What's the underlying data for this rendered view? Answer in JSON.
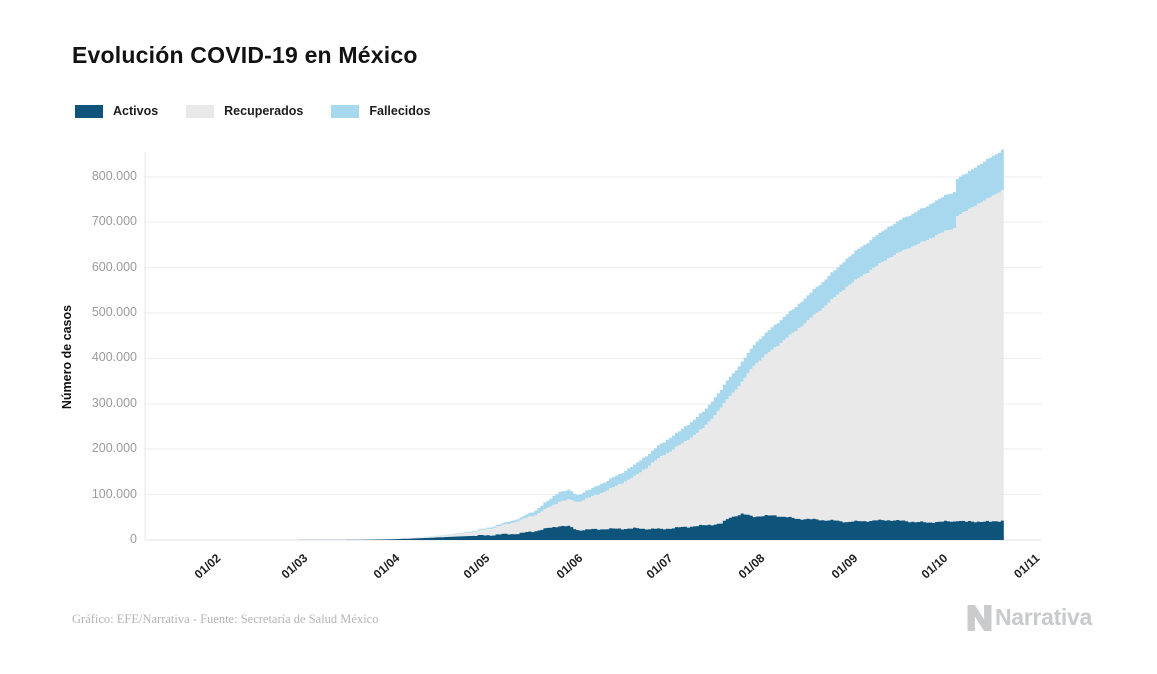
{
  "title": "Evolución COVID-19 en México",
  "legend": {
    "items": [
      {
        "label": "Activos",
        "color": "#0E547A"
      },
      {
        "label": "Recuperados",
        "color": "#E9E9E9"
      },
      {
        "label": "Fallecidos",
        "color": "#A8D8EE"
      }
    ]
  },
  "y_axis": {
    "title": "Número de casos",
    "tick_labels": [
      "800.000",
      "700.000",
      "600.000",
      "500.000",
      "400.000",
      "300.000",
      "200.000",
      "100.000",
      "0"
    ]
  },
  "x_axis": {
    "tick_labels": [
      "01/02",
      "01/03",
      "01/04",
      "01/05",
      "01/06",
      "01/07",
      "01/08",
      "01/09",
      "01/10",
      "01/11"
    ]
  },
  "footer": {
    "credit": "Gráfico: EFE/Narrativa - Fuente: Secretaría de Salud México"
  },
  "branding": {
    "logo_text": "Narrativa",
    "logo_mark_icon": "narrativa-n-icon",
    "logo_color": "#c8cacb"
  },
  "chart_data": {
    "type": "area",
    "stacked": true,
    "title": "Evolución COVID-19 en México",
    "xlabel": "",
    "ylabel": "Número de casos",
    "x_tick_labels": [
      "01/02",
      "01/03",
      "01/04",
      "01/05",
      "01/06",
      "01/07",
      "01/08",
      "01/09",
      "01/10",
      "01/11"
    ],
    "x_tick_days": [
      0,
      29,
      60,
      90,
      121,
      151,
      182,
      213,
      243,
      274
    ],
    "x_unit": "days_since_01/02",
    "ylim": [
      0,
      860000
    ],
    "y_tick_values": [
      0,
      100000,
      200000,
      300000,
      400000,
      500000,
      600000,
      700000,
      800000
    ],
    "grid": "horizontal",
    "legend_position": "top-left",
    "series_meta": [
      {
        "name": "Activos",
        "color": "#0E547A"
      },
      {
        "name": "Recuperados",
        "color": "#E9E9E9"
      },
      {
        "name": "Fallecidos",
        "color": "#A8D8EE"
      }
    ],
    "columns": [
      "day",
      "activos",
      "recuperados",
      "fallecidos"
    ],
    "points": [
      [
        0,
        0,
        0,
        0
      ],
      [
        29,
        100,
        0,
        0
      ],
      [
        45,
        300,
        50,
        10
      ],
      [
        55,
        1000,
        250,
        60
      ],
      [
        60,
        1500,
        400,
        100
      ],
      [
        67,
        3000,
        1100,
        300
      ],
      [
        74,
        5000,
        2300,
        700
      ],
      [
        81,
        7200,
        4200,
        1300
      ],
      [
        88,
        9000,
        8500,
        2000
      ],
      [
        90,
        9500,
        10000,
        2300
      ],
      [
        97,
        12000,
        18500,
        3800
      ],
      [
        104,
        14500,
        29000,
        5500
      ],
      [
        109,
        20000,
        36000,
        10000
      ],
      [
        114,
        27000,
        46000,
        18000
      ],
      [
        117,
        31000,
        54000,
        22000
      ],
      [
        120,
        30000,
        58000,
        21000
      ],
      [
        123,
        22000,
        62000,
        16000
      ],
      [
        126,
        22500,
        68000,
        17000
      ],
      [
        130,
        24000,
        77000,
        20000
      ],
      [
        135,
        24500,
        91000,
        22000
      ],
      [
        142,
        25500,
        114000,
        25500
      ],
      [
        151,
        24000,
        160000,
        28000
      ],
      [
        158,
        28000,
        184000,
        32000
      ],
      [
        165,
        32000,
        214000,
        36000
      ],
      [
        171,
        36000,
        255000,
        40000
      ],
      [
        174,
        50000,
        268000,
        42000
      ],
      [
        178,
        57000,
        290000,
        44000
      ],
      [
        182,
        52000,
        333000,
        46000
      ],
      [
        189,
        54000,
        370000,
        50000
      ],
      [
        196,
        47000,
        414000,
        53000
      ],
      [
        203,
        45000,
        455000,
        57000
      ],
      [
        210,
        42000,
        498000,
        60000
      ],
      [
        213,
        40000,
        518000,
        62000
      ],
      [
        220,
        42000,
        548000,
        66000
      ],
      [
        227,
        44000,
        577000,
        69000
      ],
      [
        234,
        41000,
        603000,
        72000
      ],
      [
        240,
        38000,
        622000,
        75000
      ],
      [
        243,
        40000,
        632000,
        77000
      ],
      [
        249,
        41000,
        646000,
        80000
      ],
      [
        250,
        43000,
        672000,
        82000
      ],
      [
        253,
        40000,
        684000,
        83000
      ],
      [
        257,
        41000,
        700000,
        85000
      ],
      [
        261,
        40000,
        714000,
        87000
      ],
      [
        265,
        43000,
        728000,
        89000
      ]
    ]
  }
}
